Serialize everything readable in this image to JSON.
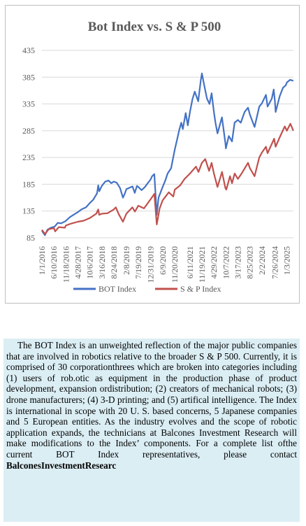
{
  "chart_data": {
    "type": "line",
    "title": "Bot Index vs. S & P 500",
    "xlabel": "",
    "ylabel": "",
    "ylim": [
      85,
      435
    ],
    "yticks": [
      85,
      135,
      185,
      235,
      285,
      335,
      385,
      435
    ],
    "x_tick_labels": [
      "1/1/2016",
      "6/10/2016",
      "11/18/2016",
      "4/28/2017",
      "10/6/2017",
      "3/16/2018",
      "8/24/2018",
      "2/8/2019",
      "7/19/2019",
      "12/31/2019",
      "6/9/2020",
      "11/20/2020",
      "6/11/2021",
      "11/19/2021",
      "4/29/2022",
      "10/7/2022",
      "3/17/2023",
      "8/25/2023",
      "2/2/2024",
      "7/26/2024",
      "1/3/2025"
    ],
    "x_range": [
      "2016-01-01",
      "2025-04-01"
    ],
    "grid": true,
    "legend": "bottom",
    "series": [
      {
        "name": "BOT Index",
        "color": "#4472c4",
        "points": [
          [
            "2016-01-01",
            98
          ],
          [
            "2016-02-10",
            90
          ],
          [
            "2016-03-15",
            100
          ],
          [
            "2016-05-01",
            104
          ],
          [
            "2016-06-20",
            106
          ],
          [
            "2016-08-01",
            113
          ],
          [
            "2016-09-15",
            112
          ],
          [
            "2016-11-10",
            116
          ],
          [
            "2017-01-15",
            124
          ],
          [
            "2017-03-01",
            128
          ],
          [
            "2017-04-28",
            133
          ],
          [
            "2017-06-15",
            138
          ],
          [
            "2017-08-15",
            142
          ],
          [
            "2017-10-06",
            150
          ],
          [
            "2017-11-20",
            156
          ],
          [
            "2018-01-10",
            168
          ],
          [
            "2018-01-26",
            183
          ],
          [
            "2018-02-09",
            172
          ],
          [
            "2018-03-16",
            182
          ],
          [
            "2018-05-01",
            190
          ],
          [
            "2018-06-15",
            192
          ],
          [
            "2018-07-20",
            187
          ],
          [
            "2018-08-24",
            190
          ],
          [
            "2018-10-01",
            188
          ],
          [
            "2018-11-15",
            178
          ],
          [
            "2018-12-24",
            160
          ],
          [
            "2019-01-20",
            168
          ],
          [
            "2019-02-08",
            176
          ],
          [
            "2019-03-15",
            178
          ],
          [
            "2019-05-01",
            181
          ],
          [
            "2019-06-01",
            169
          ],
          [
            "2019-07-01",
            182
          ],
          [
            "2019-07-19",
            180
          ],
          [
            "2019-09-01",
            174
          ],
          [
            "2019-10-15",
            180
          ],
          [
            "2019-12-31",
            194
          ],
          [
            "2020-01-20",
            200
          ],
          [
            "2020-02-19",
            204
          ],
          [
            "2020-03-23",
            128
          ],
          [
            "2020-04-15",
            160
          ],
          [
            "2020-06-09",
            180
          ],
          [
            "2020-07-15",
            192
          ],
          [
            "2020-08-15",
            205
          ],
          [
            "2020-10-01",
            215
          ],
          [
            "2020-11-20",
            250
          ],
          [
            "2020-12-20",
            268
          ],
          [
            "2021-01-20",
            287
          ],
          [
            "2021-02-15",
            300
          ],
          [
            "2021-03-08",
            288
          ],
          [
            "2021-04-15",
            318
          ],
          [
            "2021-05-13",
            295
          ],
          [
            "2021-06-11",
            320
          ],
          [
            "2021-07-15",
            344
          ],
          [
            "2021-08-15",
            358
          ],
          [
            "2021-09-30",
            340
          ],
          [
            "2021-11-05",
            380
          ],
          [
            "2021-11-19",
            392
          ],
          [
            "2021-12-20",
            370
          ],
          [
            "2022-01-25",
            345
          ],
          [
            "2022-03-01",
            335
          ],
          [
            "2022-03-29",
            355
          ],
          [
            "2022-04-29",
            320
          ],
          [
            "2022-05-20",
            300
          ],
          [
            "2022-06-16",
            280
          ],
          [
            "2022-08-15",
            310
          ],
          [
            "2022-09-30",
            262
          ],
          [
            "2022-10-07",
            252
          ],
          [
            "2022-11-15",
            275
          ],
          [
            "2022-12-28",
            265
          ],
          [
            "2023-02-01",
            300
          ],
          [
            "2023-03-17",
            305
          ],
          [
            "2023-04-25",
            300
          ],
          [
            "2023-06-15",
            320
          ],
          [
            "2023-07-31",
            328
          ],
          [
            "2023-08-25",
            315
          ],
          [
            "2023-10-27",
            292
          ],
          [
            "2023-12-29",
            330
          ],
          [
            "2024-02-02",
            336
          ],
          [
            "2024-03-28",
            352
          ],
          [
            "2024-04-19",
            330
          ],
          [
            "2024-06-15",
            345
          ],
          [
            "2024-07-10",
            362
          ],
          [
            "2024-07-26",
            340
          ],
          [
            "2024-08-05",
            320
          ],
          [
            "2024-09-30",
            350
          ],
          [
            "2024-11-11",
            365
          ],
          [
            "2024-12-20",
            370
          ],
          [
            "2025-01-03",
            375
          ],
          [
            "2025-02-15",
            380
          ],
          [
            "2025-03-31",
            378
          ]
        ]
      },
      {
        "name": "S & P Index",
        "color": "#c0504d",
        "points": [
          [
            "2016-01-01",
            100
          ],
          [
            "2016-02-11",
            92
          ],
          [
            "2016-04-01",
            101
          ],
          [
            "2016-06-10",
            103
          ],
          [
            "2016-06-27",
            97
          ],
          [
            "2016-08-15",
            105
          ],
          [
            "2016-11-04",
            104
          ],
          [
            "2016-11-18",
            108
          ],
          [
            "2017-01-15",
            111
          ],
          [
            "2017-04-28",
            115
          ],
          [
            "2017-07-15",
            117
          ],
          [
            "2017-10-06",
            122
          ],
          [
            "2017-12-31",
            130
          ],
          [
            "2018-01-26",
            138
          ],
          [
            "2018-02-08",
            128
          ],
          [
            "2018-03-16",
            130
          ],
          [
            "2018-06-01",
            131
          ],
          [
            "2018-08-24",
            138
          ],
          [
            "2018-09-20",
            142
          ],
          [
            "2018-10-29",
            129
          ],
          [
            "2018-12-24",
            115
          ],
          [
            "2019-02-08",
            130
          ],
          [
            "2019-04-30",
            142
          ],
          [
            "2019-06-03",
            134
          ],
          [
            "2019-07-19",
            145
          ],
          [
            "2019-10-03",
            140
          ],
          [
            "2019-12-31",
            157
          ],
          [
            "2020-02-19",
            167
          ],
          [
            "2020-03-23",
            110
          ],
          [
            "2020-04-30",
            140
          ],
          [
            "2020-06-09",
            155
          ],
          [
            "2020-08-31",
            170
          ],
          [
            "2020-10-30",
            162
          ],
          [
            "2020-11-20",
            175
          ],
          [
            "2021-01-31",
            183
          ],
          [
            "2021-03-31",
            195
          ],
          [
            "2021-06-11",
            205
          ],
          [
            "2021-08-31",
            218
          ],
          [
            "2021-10-04",
            208
          ],
          [
            "2021-11-19",
            225
          ],
          [
            "2022-01-03",
            232
          ],
          [
            "2022-02-23",
            210
          ],
          [
            "2022-03-29",
            225
          ],
          [
            "2022-04-29",
            205
          ],
          [
            "2022-06-16",
            180
          ],
          [
            "2022-08-16",
            208
          ],
          [
            "2022-09-30",
            178
          ],
          [
            "2022-10-12",
            175
          ],
          [
            "2022-12-01",
            200
          ],
          [
            "2022-12-28",
            187
          ],
          [
            "2023-02-02",
            205
          ],
          [
            "2023-03-17",
            195
          ],
          [
            "2023-05-01",
            204
          ],
          [
            "2023-07-31",
            225
          ],
          [
            "2023-08-25",
            215
          ],
          [
            "2023-10-27",
            200
          ],
          [
            "2023-12-29",
            235
          ],
          [
            "2024-02-02",
            244
          ],
          [
            "2024-03-28",
            255
          ],
          [
            "2024-04-19",
            243
          ],
          [
            "2024-07-16",
            270
          ],
          [
            "2024-08-05",
            255
          ],
          [
            "2024-09-30",
            273
          ],
          [
            "2024-12-06",
            293
          ],
          [
            "2025-01-03",
            285
          ],
          [
            "2025-02-19",
            298
          ],
          [
            "2025-03-31",
            285
          ]
        ]
      }
    ]
  },
  "caption": {
    "main": "The BOT Index is an unweighted reflection of the major public companies that are involved in robotics relative to the broader S & P 500. Currently, it is comprised of 30 corporationthrees which are broken into categories including (1) users of rob.otic as equipment in the production phase of product development, expansion ordistribution; (2) creators of mechanical robots; (3) drone manufacturers; (4) 3-D printing; and (5) artifical intelligence. The Index is international in scope with 20 U. S. based concerns, 5 Japanese companies and 5 European entities. As the industry evolves and the scope of robotic application expands, the technicians at Balcones Investment Research will make modifications to the Index’ components. For a complete list ofthe current BOT Index representatives, please contact",
    "tail": "BalconesInvestmentResearc"
  }
}
